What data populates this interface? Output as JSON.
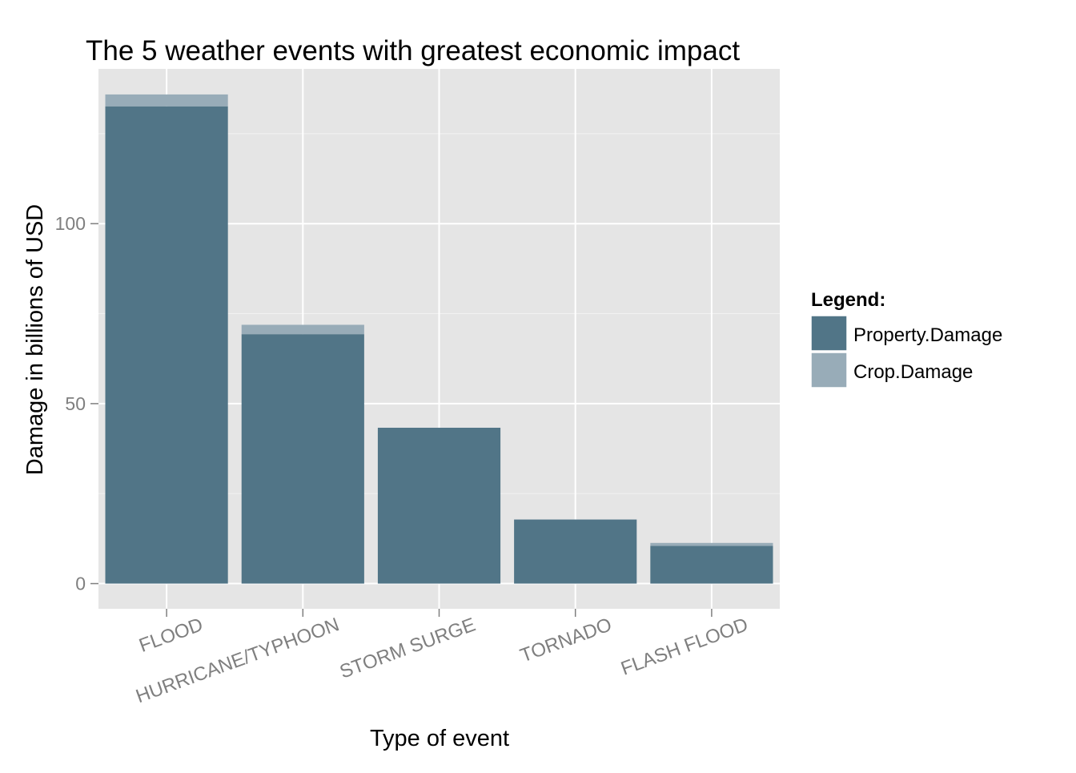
{
  "chart_data": {
    "type": "bar",
    "stacked": true,
    "title": "The 5 weather events with greatest economic impact",
    "xlabel": "Type of event",
    "ylabel": "Damage in billions of USD",
    "categories": [
      "FLOOD",
      "HURRICANE/TYPHOON",
      "STORM SURGE",
      "TORNADO",
      "FLASH FLOOD"
    ],
    "series": [
      {
        "name": "Property.Damage",
        "values": [
          132.6,
          69.3,
          43.3,
          17.8,
          10.5
        ],
        "color": "#517587"
      },
      {
        "name": "Crop.Damage",
        "values": [
          3.3,
          2.6,
          0.0,
          0.0,
          0.8
        ],
        "color": "#98acb8"
      }
    ],
    "y_ticks": [
      0,
      50,
      100
    ],
    "y_tick_labels": [
      "0",
      "50",
      "100"
    ],
    "ylim": [
      -7,
      143
    ],
    "grid": true,
    "legend": {
      "title": "Legend:",
      "position": "right",
      "labels": [
        "Property.Damage",
        "Crop.Damage"
      ]
    },
    "colors": {
      "panel_background": "#e5e5e5",
      "grid_major": "#ffffff",
      "grid_minor": "#f2f2f2",
      "tick_label": "#7f7f7f"
    }
  }
}
